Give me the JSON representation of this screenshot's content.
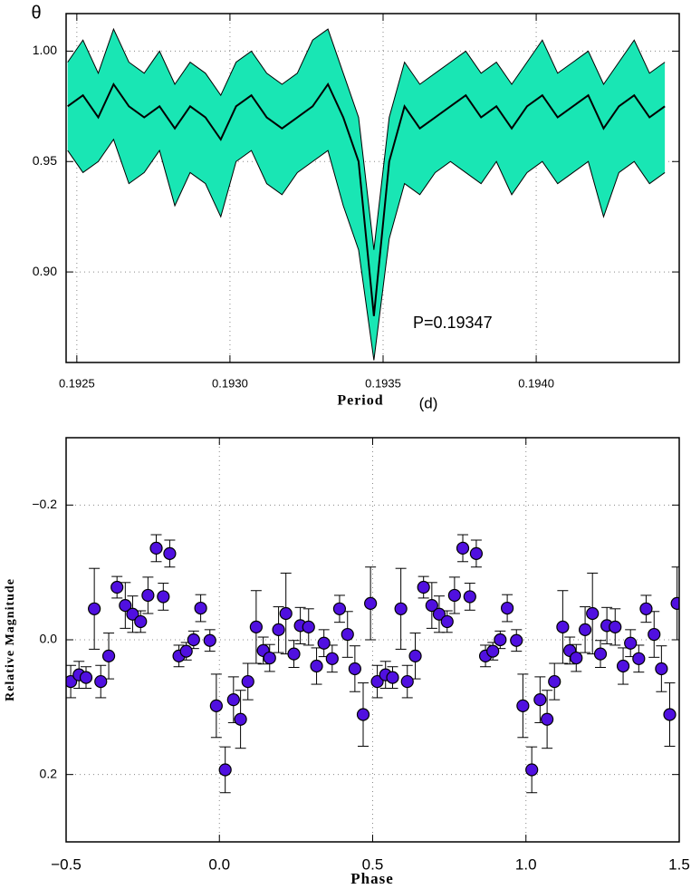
{
  "chart_data": [
    {
      "type": "area",
      "ylabel": "θ",
      "xlabel": "Period",
      "xlabel_unit": "(d)",
      "annotation": "P=0.19347",
      "fill": "#19e6b4",
      "x": [
        0.19247,
        0.19252,
        0.19257,
        0.19262,
        0.19267,
        0.19272,
        0.19277,
        0.19282,
        0.19287,
        0.19292,
        0.19297,
        0.19302,
        0.19307,
        0.19312,
        0.19317,
        0.19322,
        0.19327,
        0.19332,
        0.19337,
        0.19342,
        0.19347,
        0.19352,
        0.19357,
        0.19362,
        0.19367,
        0.19372,
        0.19377,
        0.19382,
        0.19387,
        0.19392,
        0.19397,
        0.19402,
        0.19407,
        0.19412,
        0.19417,
        0.19422,
        0.19427,
        0.19432,
        0.19437,
        0.19442
      ],
      "series": [
        {
          "color": "#000000",
          "values": [
            0.995,
            1.005,
            0.99,
            1.01,
            0.995,
            0.99,
            1.0,
            0.985,
            0.995,
            0.99,
            0.98,
            0.995,
            1.0,
            0.99,
            0.985,
            0.99,
            1.005,
            1.01,
            0.99,
            0.97,
            0.91,
            0.97,
            0.995,
            0.985,
            0.99,
            0.995,
            1.0,
            0.99,
            0.995,
            0.985,
            0.995,
            1.005,
            0.99,
            0.995,
            1.0,
            0.985,
            0.995,
            1.005,
            0.99,
            0.995
          ]
        },
        {
          "color": "#000000",
          "values": [
            0.975,
            0.98,
            0.97,
            0.985,
            0.975,
            0.97,
            0.975,
            0.965,
            0.975,
            0.97,
            0.96,
            0.975,
            0.98,
            0.97,
            0.965,
            0.97,
            0.975,
            0.985,
            0.97,
            0.95,
            0.88,
            0.95,
            0.975,
            0.965,
            0.97,
            0.975,
            0.98,
            0.97,
            0.975,
            0.965,
            0.975,
            0.98,
            0.97,
            0.975,
            0.98,
            0.965,
            0.975,
            0.98,
            0.97,
            0.975
          ]
        },
        {
          "color": "#000000",
          "values": [
            0.955,
            0.945,
            0.95,
            0.96,
            0.94,
            0.945,
            0.955,
            0.93,
            0.945,
            0.94,
            0.925,
            0.95,
            0.955,
            0.94,
            0.935,
            0.945,
            0.95,
            0.955,
            0.93,
            0.91,
            0.86,
            0.915,
            0.94,
            0.935,
            0.945,
            0.95,
            0.945,
            0.94,
            0.95,
            0.935,
            0.945,
            0.95,
            0.94,
            0.945,
            0.95,
            0.925,
            0.945,
            0.95,
            0.94,
            0.945
          ]
        }
      ],
      "xlim": [
        0.192465,
        0.194467
      ],
      "ylim": [
        0.859,
        1.017
      ],
      "xticks": [
        0.1925,
        {
          "value": 0.193,
          "label": "0.1930"
        },
        0.1935,
        {
          "value": 0.194,
          "label": "0.1940"
        }
      ],
      "yticks": [
        {
          "value": 0.9,
          "label": "0.90"
        },
        0.95,
        {
          "value": 1.0,
          "label": "1.00"
        }
      ],
      "grid": true
    },
    {
      "type": "scatter",
      "xlabel": "Phase",
      "ylabel": "Relative Magnitude",
      "color": "#5010e0",
      "x": [
        -0.485,
        -0.458,
        -0.435,
        -0.408,
        -0.387,
        -0.361,
        -0.334,
        -0.307,
        -0.283,
        -0.257,
        -0.233,
        -0.206,
        -0.183,
        -0.162,
        -0.132,
        -0.108,
        -0.084,
        -0.061,
        -0.031,
        -0.01,
        0.019,
        0.046,
        0.069,
        0.093,
        0.12,
        0.143,
        0.164,
        0.193,
        0.217,
        0.243,
        0.264,
        0.291,
        0.317,
        0.341,
        0.368,
        0.392,
        0.418,
        0.442,
        0.469,
        0.493,
        0.515,
        0.542,
        0.565,
        0.592,
        0.613,
        0.639,
        0.666,
        0.693,
        0.717,
        0.743,
        0.767,
        0.794,
        0.817,
        0.838,
        0.868,
        0.892,
        0.916,
        0.939,
        0.969,
        0.99,
        1.019,
        1.046,
        1.069,
        1.093,
        1.12,
        1.143,
        1.164,
        1.193,
        1.217,
        1.243,
        1.264,
        1.291,
        1.317,
        1.341,
        1.368,
        1.392,
        1.418,
        1.442,
        1.469,
        1.493
      ],
      "values": [
        0.062,
        0.052,
        0.056,
        -0.046,
        0.062,
        0.024,
        -0.078,
        -0.051,
        -0.038,
        -0.027,
        -0.066,
        -0.136,
        -0.064,
        -0.128,
        0.024,
        0.017,
        0.0,
        -0.047,
        0.001,
        0.098,
        0.193,
        0.089,
        0.118,
        0.062,
        -0.019,
        0.016,
        0.027,
        -0.015,
        -0.039,
        0.021,
        -0.021,
        -0.019,
        0.039,
        0.005,
        0.028,
        -0.046,
        -0.008,
        0.043,
        0.111,
        -0.054,
        0.062,
        0.052,
        0.056,
        -0.046,
        0.062,
        0.024,
        -0.078,
        -0.051,
        -0.038,
        -0.027,
        -0.066,
        -0.136,
        -0.064,
        -0.128,
        0.024,
        0.017,
        0.0,
        -0.047,
        0.001,
        0.098,
        0.193,
        0.089,
        0.118,
        0.062,
        -0.019,
        0.016,
        0.027,
        -0.015,
        -0.039,
        0.021,
        -0.021,
        -0.019,
        0.039,
        0.005,
        0.028,
        -0.046,
        -0.008,
        0.043,
        0.111,
        -0.054
      ],
      "errors": [
        0.024,
        0.02,
        0.016,
        0.06,
        0.024,
        0.034,
        0.016,
        0.034,
        0.027,
        0.016,
        0.027,
        0.02,
        0.02,
        0.02,
        0.016,
        0.013,
        0.013,
        0.02,
        0.016,
        0.047,
        0.034,
        0.034,
        0.043,
        0.027,
        0.054,
        0.02,
        0.02,
        0.034,
        0.06,
        0.02,
        0.027,
        0.027,
        0.027,
        0.02,
        0.02,
        0.02,
        0.034,
        0.034,
        0.047,
        0.054,
        0.024,
        0.02,
        0.016,
        0.06,
        0.024,
        0.034,
        0.016,
        0.034,
        0.027,
        0.016,
        0.027,
        0.02,
        0.02,
        0.02,
        0.016,
        0.013,
        0.013,
        0.02,
        0.016,
        0.047,
        0.034,
        0.034,
        0.043,
        0.027,
        0.054,
        0.02,
        0.02,
        0.034,
        0.06,
        0.02,
        0.027,
        0.027,
        0.027,
        0.02,
        0.02,
        0.02,
        0.034,
        0.034,
        0.047,
        0.054
      ],
      "xlim": [
        -0.5,
        1.5
      ],
      "ylim": [
        0.3,
        -0.3
      ],
      "xticks": [
        {
          "value": -0.5,
          "label": "−0.5"
        },
        {
          "value": 0,
          "label": "0.0"
        },
        0.5,
        {
          "value": 1,
          "label": "1.0"
        },
        1.5
      ],
      "yticks": [
        {
          "value": -0.2,
          "label": "−0.2"
        },
        {
          "value": 0,
          "label": "0.0"
        },
        0.2
      ],
      "grid": true
    }
  ]
}
